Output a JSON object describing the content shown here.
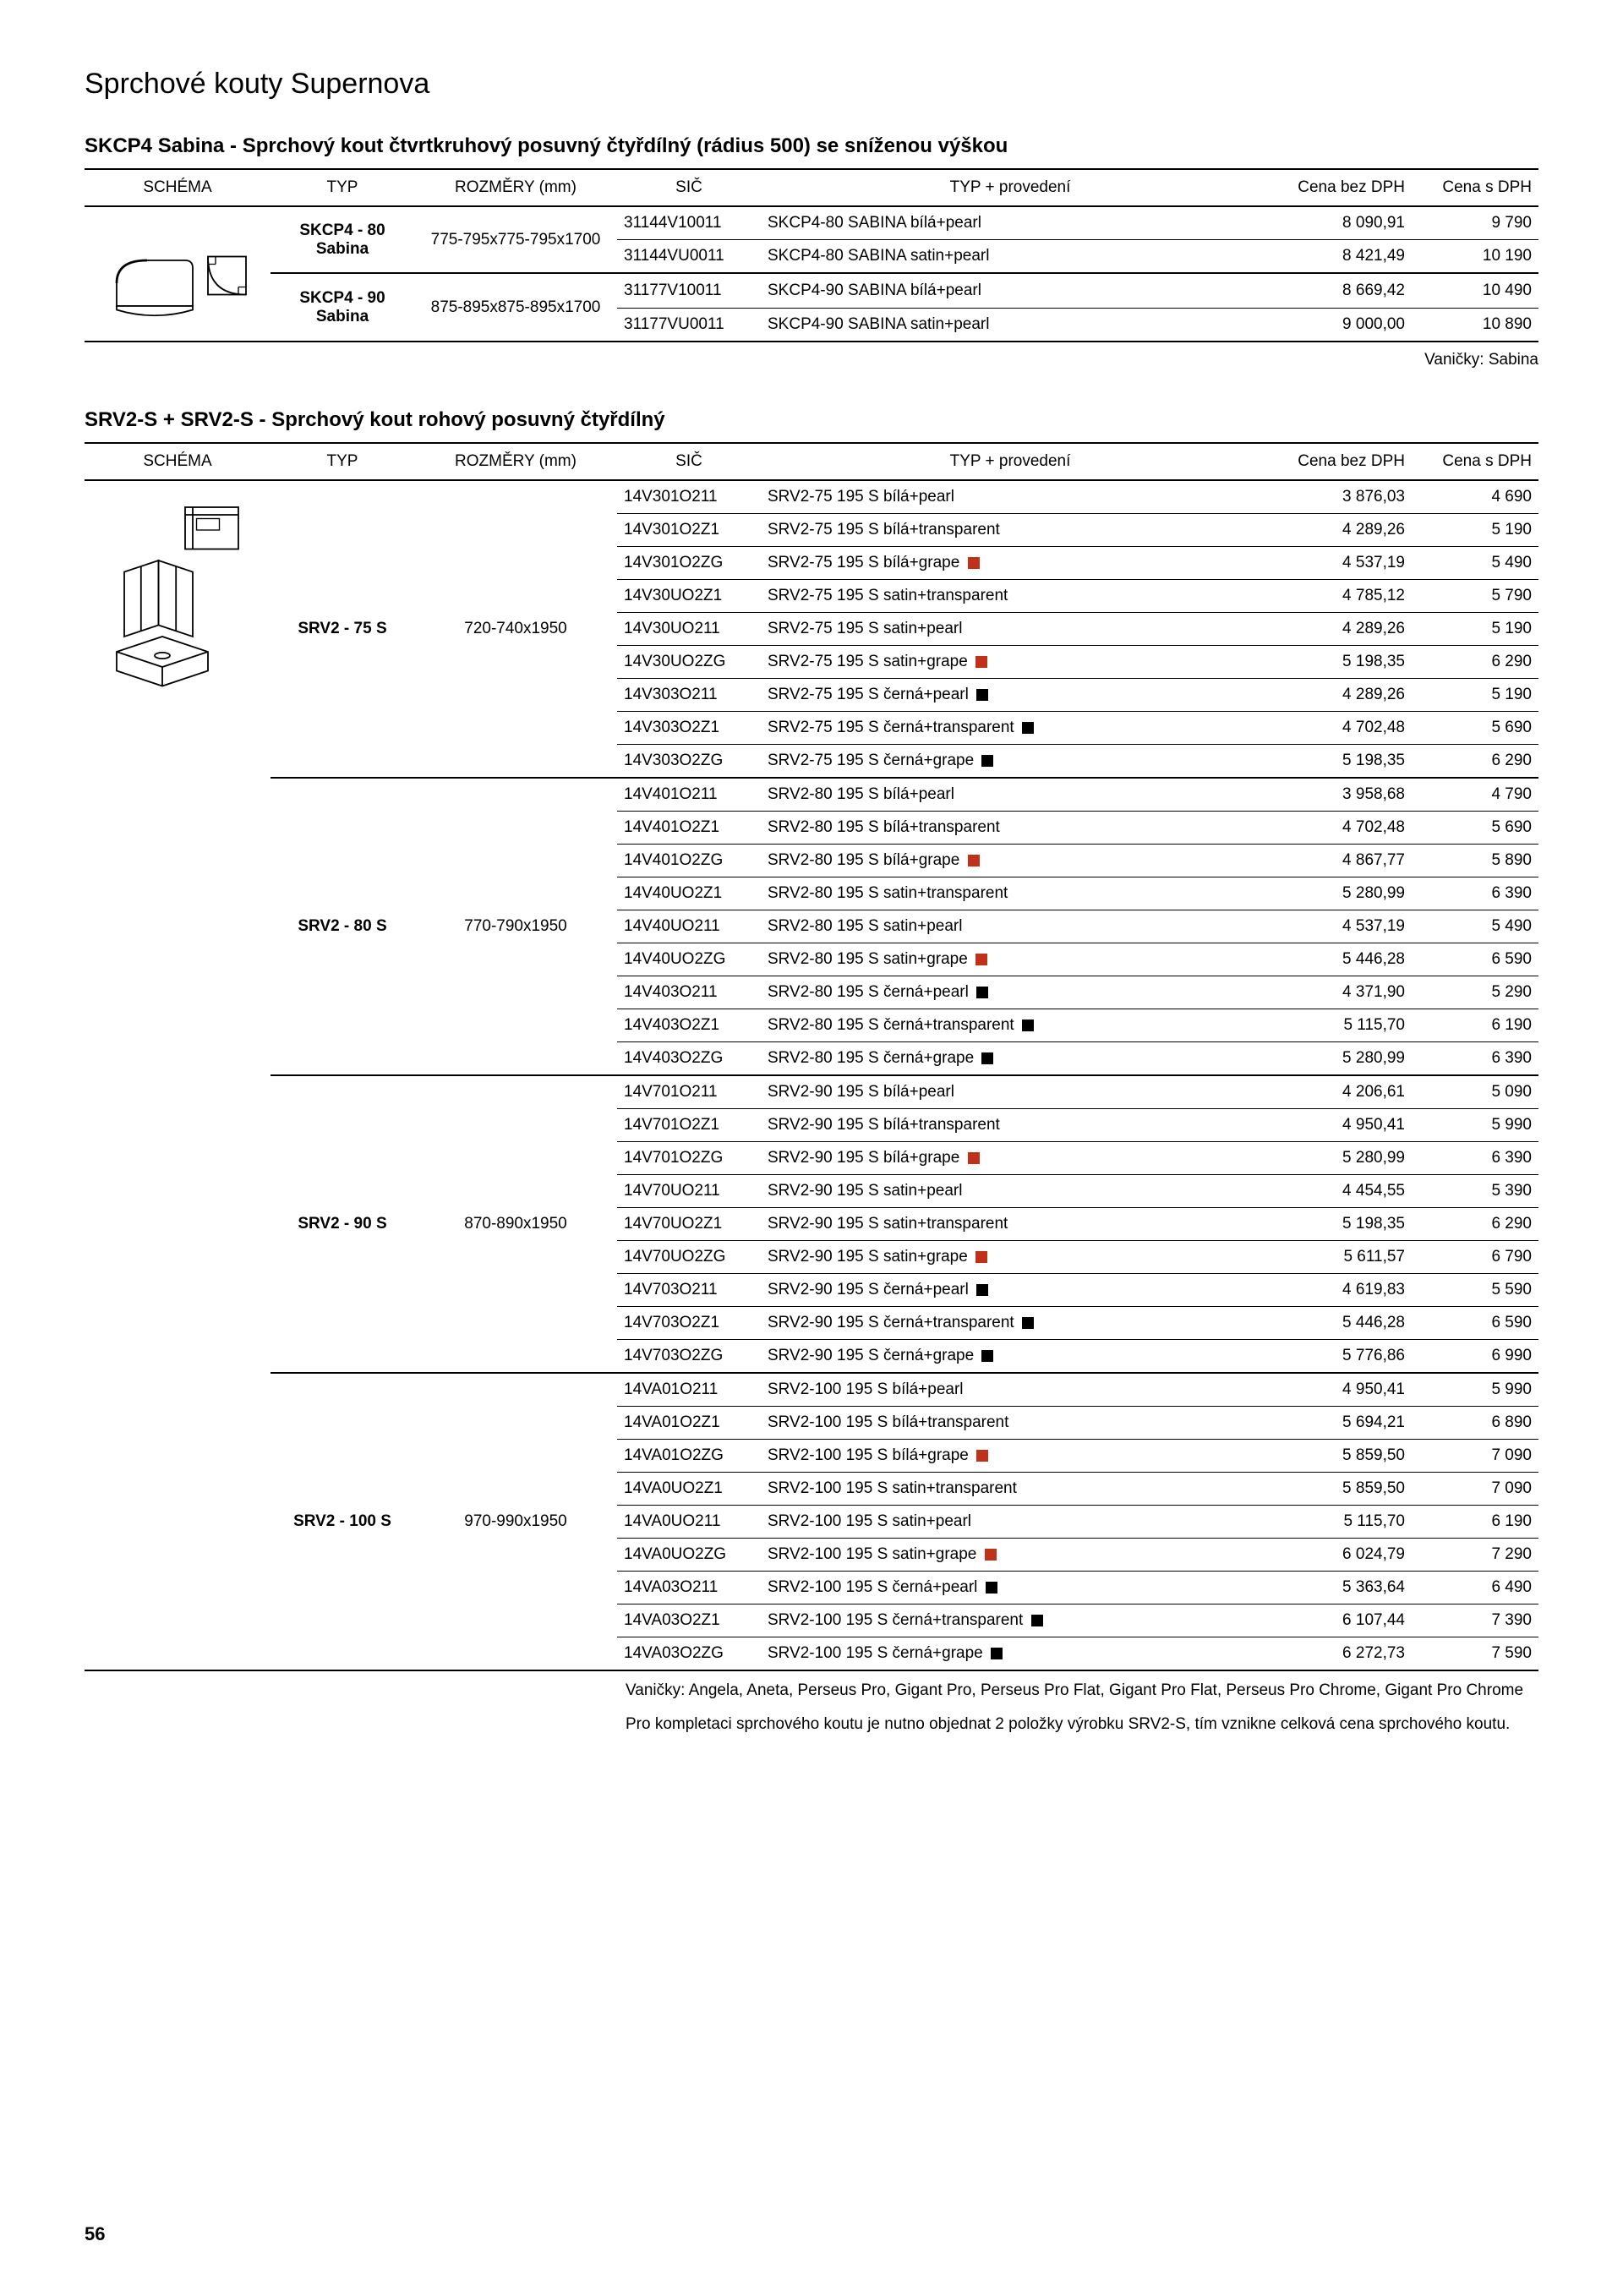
{
  "page_title": "Sprchové kouty Supernova",
  "page_number": "56",
  "columns": {
    "schema": "SCHÉMA",
    "typ": "TYP",
    "roz": "ROZMĚRY (mm)",
    "sic": "SIČ",
    "prov": "TYP + provedení",
    "bez": "Cena bez DPH",
    "dph": "Cena s DPH"
  },
  "section1": {
    "title": "SKCP4 Sabina - Sprchový kout čtvrtkruhový posuvný čtyřdílný (rádius 500) se sníženou výškou",
    "note": "Vaničky: Sabina",
    "groups": [
      {
        "typ": "SKCP4 - 80 Sabina",
        "roz": "775-795x775-795x1700",
        "rows": [
          {
            "sic": "31144V10011",
            "prov": "SKCP4-80 SABINA bílá+pearl",
            "bez": "8 090,91",
            "dph": "9 790"
          },
          {
            "sic": "31144VU0011",
            "prov": "SKCP4-80 SABINA satin+pearl",
            "bez": "8 421,49",
            "dph": "10 190"
          }
        ]
      },
      {
        "typ": "SKCP4 - 90 Sabina",
        "roz": "875-895x875-895x1700",
        "rows": [
          {
            "sic": "31177V10011",
            "prov": "SKCP4-90 SABINA bílá+pearl",
            "bez": "8 669,42",
            "dph": "10 490"
          },
          {
            "sic": "31177VU0011",
            "prov": "SKCP4-90 SABINA satin+pearl",
            "bez": "9 000,00",
            "dph": "10 890"
          }
        ]
      }
    ]
  },
  "section2": {
    "title": "SRV2-S + SRV2-S - Sprchový kout rohový posuvný čtyřdílný",
    "foot1": "Vaničky: Angela, Aneta, Perseus Pro, Gigant Pro, Perseus Pro Flat, Gigant Pro Flat, Perseus Pro Chrome, Gigant Pro Chrome",
    "foot2": "Pro kompletaci sprchového koutu je nutno objednat 2 položky výrobku SRV2-S, tím vznikne celková cena sprchového koutu.",
    "groups": [
      {
        "typ": "SRV2 - 75 S",
        "roz": "720-740x1950",
        "rows": [
          {
            "sic": "14V301O211",
            "prov": "SRV2-75 195 S bílá+pearl",
            "icon": "",
            "bez": "3 876,03",
            "dph": "4 690"
          },
          {
            "sic": "14V301O2Z1",
            "prov": "SRV2-75 195 S bílá+transparent",
            "icon": "",
            "bez": "4 289,26",
            "dph": "5 190"
          },
          {
            "sic": "14V301O2ZG",
            "prov": "SRV2-75 195 S bílá+grape",
            "icon": "red",
            "bez": "4 537,19",
            "dph": "5 490"
          },
          {
            "sic": "14V30UO2Z1",
            "prov": "SRV2-75 195 S satin+transparent",
            "icon": "",
            "bez": "4 785,12",
            "dph": "5 790"
          },
          {
            "sic": "14V30UO211",
            "prov": "SRV2-75 195 S satin+pearl",
            "icon": "",
            "bez": "4 289,26",
            "dph": "5 190"
          },
          {
            "sic": "14V30UO2ZG",
            "prov": "SRV2-75 195 S satin+grape",
            "icon": "red",
            "bez": "5 198,35",
            "dph": "6 290"
          },
          {
            "sic": "14V303O211",
            "prov": "SRV2-75 195 S černá+pearl",
            "icon": "black",
            "bez": "4 289,26",
            "dph": "5 190"
          },
          {
            "sic": "14V303O2Z1",
            "prov": "SRV2-75 195 S černá+transparent",
            "icon": "black",
            "bez": "4 702,48",
            "dph": "5 690"
          },
          {
            "sic": "14V303O2ZG",
            "prov": "SRV2-75 195 S černá+grape",
            "icon": "black",
            "bez": "5 198,35",
            "dph": "6 290"
          }
        ]
      },
      {
        "typ": "SRV2 - 80 S",
        "roz": "770-790x1950",
        "rows": [
          {
            "sic": "14V401O211",
            "prov": "SRV2-80 195 S bílá+pearl",
            "icon": "",
            "bez": "3 958,68",
            "dph": "4 790"
          },
          {
            "sic": "14V401O2Z1",
            "prov": "SRV2-80 195 S bílá+transparent",
            "icon": "",
            "bez": "4 702,48",
            "dph": "5 690"
          },
          {
            "sic": "14V401O2ZG",
            "prov": "SRV2-80 195 S bílá+grape",
            "icon": "red",
            "bez": "4 867,77",
            "dph": "5 890"
          },
          {
            "sic": "14V40UO2Z1",
            "prov": "SRV2-80 195 S satin+transparent",
            "icon": "",
            "bez": "5 280,99",
            "dph": "6 390"
          },
          {
            "sic": "14V40UO211",
            "prov": "SRV2-80 195 S satin+pearl",
            "icon": "",
            "bez": "4 537,19",
            "dph": "5 490"
          },
          {
            "sic": "14V40UO2ZG",
            "prov": "SRV2-80 195 S satin+grape",
            "icon": "red",
            "bez": "5 446,28",
            "dph": "6 590"
          },
          {
            "sic": "14V403O211",
            "prov": "SRV2-80 195 S černá+pearl",
            "icon": "black",
            "bez": "4 371,90",
            "dph": "5 290"
          },
          {
            "sic": "14V403O2Z1",
            "prov": "SRV2-80 195 S černá+transparent",
            "icon": "black",
            "bez": "5 115,70",
            "dph": "6 190"
          },
          {
            "sic": "14V403O2ZG",
            "prov": "SRV2-80 195 S černá+grape",
            "icon": "black",
            "bez": "5 280,99",
            "dph": "6 390"
          }
        ]
      },
      {
        "typ": "SRV2 - 90 S",
        "roz": "870-890x1950",
        "rows": [
          {
            "sic": "14V701O211",
            "prov": "SRV2-90 195 S bílá+pearl",
            "icon": "",
            "bez": "4 206,61",
            "dph": "5 090"
          },
          {
            "sic": "14V701O2Z1",
            "prov": "SRV2-90 195 S bílá+transparent",
            "icon": "",
            "bez": "4 950,41",
            "dph": "5 990"
          },
          {
            "sic": "14V701O2ZG",
            "prov": "SRV2-90 195 S bílá+grape",
            "icon": "red",
            "bez": "5 280,99",
            "dph": "6 390"
          },
          {
            "sic": "14V70UO211",
            "prov": "SRV2-90 195 S satin+pearl",
            "icon": "",
            "bez": "4 454,55",
            "dph": "5 390"
          },
          {
            "sic": "14V70UO2Z1",
            "prov": "SRV2-90 195 S satin+transparent",
            "icon": "",
            "bez": "5 198,35",
            "dph": "6 290"
          },
          {
            "sic": "14V70UO2ZG",
            "prov": "SRV2-90 195 S satin+grape",
            "icon": "red",
            "bez": "5 611,57",
            "dph": "6 790"
          },
          {
            "sic": "14V703O211",
            "prov": "SRV2-90 195 S černá+pearl",
            "icon": "black",
            "bez": "4 619,83",
            "dph": "5 590"
          },
          {
            "sic": "14V703O2Z1",
            "prov": "SRV2-90 195 S černá+transparent",
            "icon": "black",
            "bez": "5 446,28",
            "dph": "6 590"
          },
          {
            "sic": "14V703O2ZG",
            "prov": "SRV2-90 195 S černá+grape",
            "icon": "black",
            "bez": "5 776,86",
            "dph": "6 990"
          }
        ]
      },
      {
        "typ": "SRV2 - 100 S",
        "roz": "970-990x1950",
        "rows": [
          {
            "sic": "14VA01O211",
            "prov": "SRV2-100 195 S bílá+pearl",
            "icon": "",
            "bez": "4 950,41",
            "dph": "5 990"
          },
          {
            "sic": "14VA01O2Z1",
            "prov": "SRV2-100 195 S bílá+transparent",
            "icon": "",
            "bez": "5 694,21",
            "dph": "6 890"
          },
          {
            "sic": "14VA01O2ZG",
            "prov": "SRV2-100 195 S bílá+grape",
            "icon": "red",
            "bez": "5 859,50",
            "dph": "7 090"
          },
          {
            "sic": "14VA0UO2Z1",
            "prov": "SRV2-100 195 S satin+transparent",
            "icon": "",
            "bez": "5 859,50",
            "dph": "7 090"
          },
          {
            "sic": "14VA0UO211",
            "prov": "SRV2-100 195 S satin+pearl",
            "icon": "",
            "bez": "5 115,70",
            "dph": "6 190"
          },
          {
            "sic": "14VA0UO2ZG",
            "prov": "SRV2-100 195 S satin+grape",
            "icon": "red",
            "bez": "6 024,79",
            "dph": "7 290"
          },
          {
            "sic": "14VA03O211",
            "prov": "SRV2-100 195 S černá+pearl",
            "icon": "black",
            "bez": "5 363,64",
            "dph": "6 490"
          },
          {
            "sic": "14VA03O2Z1",
            "prov": "SRV2-100 195 S černá+transparent",
            "icon": "black",
            "bez": "6 107,44",
            "dph": "7 390"
          },
          {
            "sic": "14VA03O2ZG",
            "prov": "SRV2-100 195 S černá+grape",
            "icon": "black",
            "bez": "6 272,73",
            "dph": "7 590"
          }
        ]
      }
    ]
  }
}
